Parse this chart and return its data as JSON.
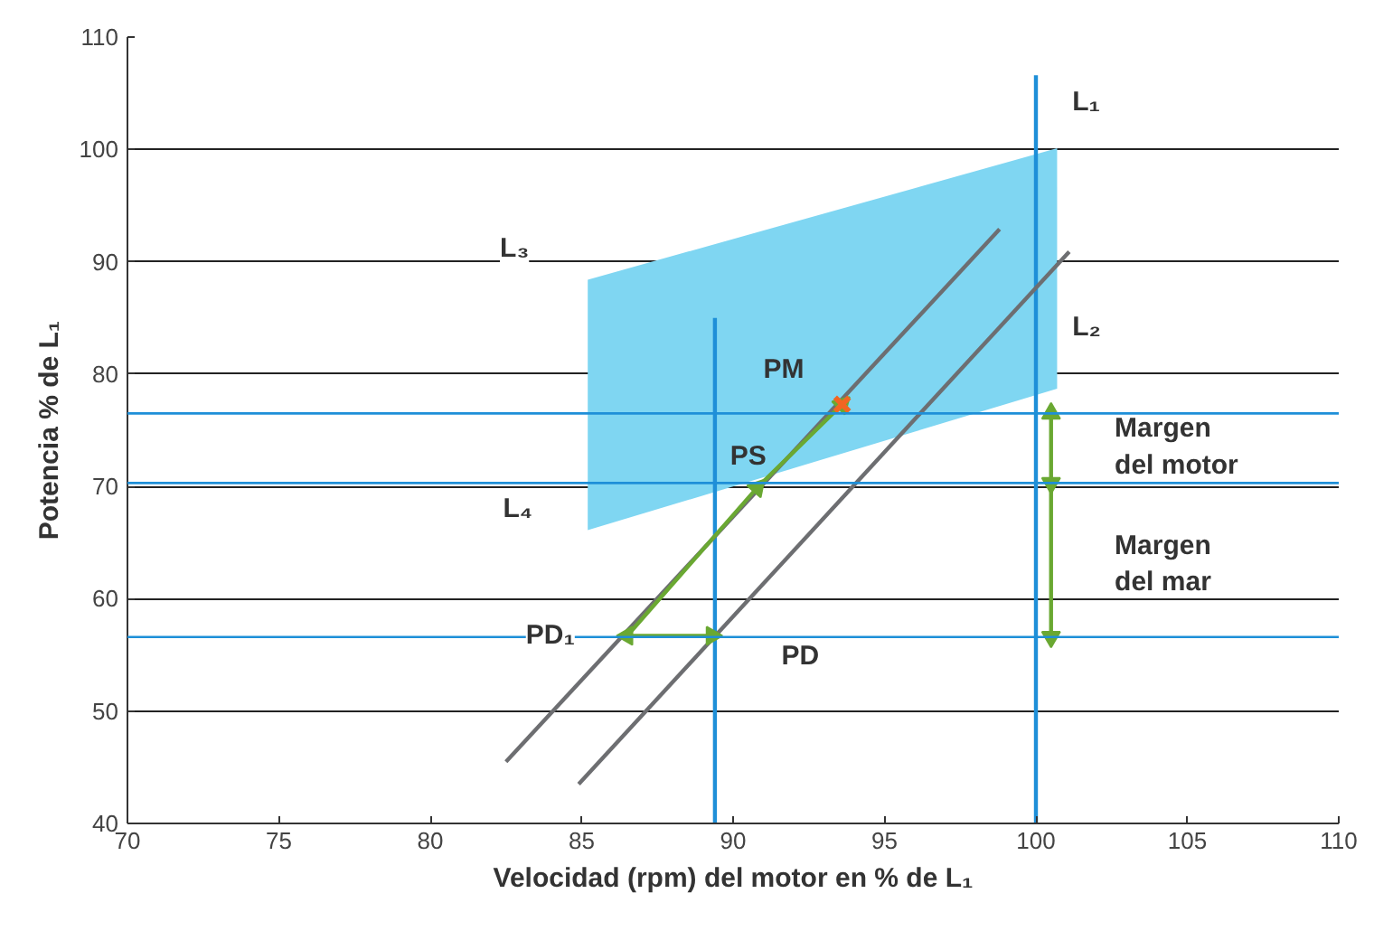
{
  "chart_data": {
    "type": "line",
    "xlabel": "Velocidad (rpm) del motor en % de L₁",
    "ylabel": "Potencia % de L₁",
    "xlim": [
      70,
      110
    ],
    "ylim": [
      40,
      110
    ],
    "xticks": [
      70,
      75,
      80,
      85,
      90,
      95,
      100,
      105,
      110
    ],
    "yticks": [
      40,
      50,
      60,
      70,
      80,
      90,
      100,
      110
    ],
    "grid": "y",
    "series": [
      {
        "color": "#7fd6f2",
        "x": [
          85.2,
          100.7
        ],
        "values": [
          null,
          null
        ],
        "lower": [
          66.1,
          78.7
        ],
        "upper": [
          88.4,
          100.1
        ]
      },
      {
        "color": "#1e8fd8",
        "x": [
          89.4,
          89.4
        ],
        "values": [
          40,
          85
        ]
      },
      {
        "color": "#1e8fd8",
        "x": [
          100,
          100
        ],
        "values": [
          40,
          106.6
        ]
      },
      {
        "color": "#6d6e71",
        "x": [
          82.5,
          98.8
        ],
        "values": [
          45.5,
          92.9
        ]
      },
      {
        "color": "#6d6e71",
        "x": [
          84.9,
          101.1
        ],
        "values": [
          43.5,
          90.9
        ]
      },
      {
        "color": "#6aa832",
        "marker": "triangle",
        "x": [
          89.3,
          86.5,
          90.8,
          93.6
        ],
        "values": [
          56.7,
          56.7,
          69.9,
          77.3
        ]
      },
      {
        "color": "#6aa832",
        "marker": "triangle",
        "x": [
          100.5,
          100.5,
          100.5
        ],
        "values": [
          76.5,
          70.3,
          56.6
        ]
      },
      {
        "type": "scatter",
        "color": "#f26522",
        "marker": "cross",
        "x": [
          93.6
        ],
        "values": [
          77.3
        ]
      }
    ],
    "ref_lines": [
      {
        "axis": "y",
        "value": 76.5,
        "color": "#1e8fd8"
      },
      {
        "axis": "y",
        "value": 70.3,
        "color": "#1e8fd8"
      },
      {
        "axis": "y",
        "value": 56.6,
        "color": "#1e8fd8"
      }
    ],
    "annotations": [
      "L₁",
      "L₂",
      "L₃",
      "L₄",
      "PM",
      "PS",
      {
        "text": "PD₁",
        "x": 86.5,
        "y": 56.7
      },
      "PD",
      "Margen\ndel motor",
      "Margen\ndel mar"
    ]
  }
}
